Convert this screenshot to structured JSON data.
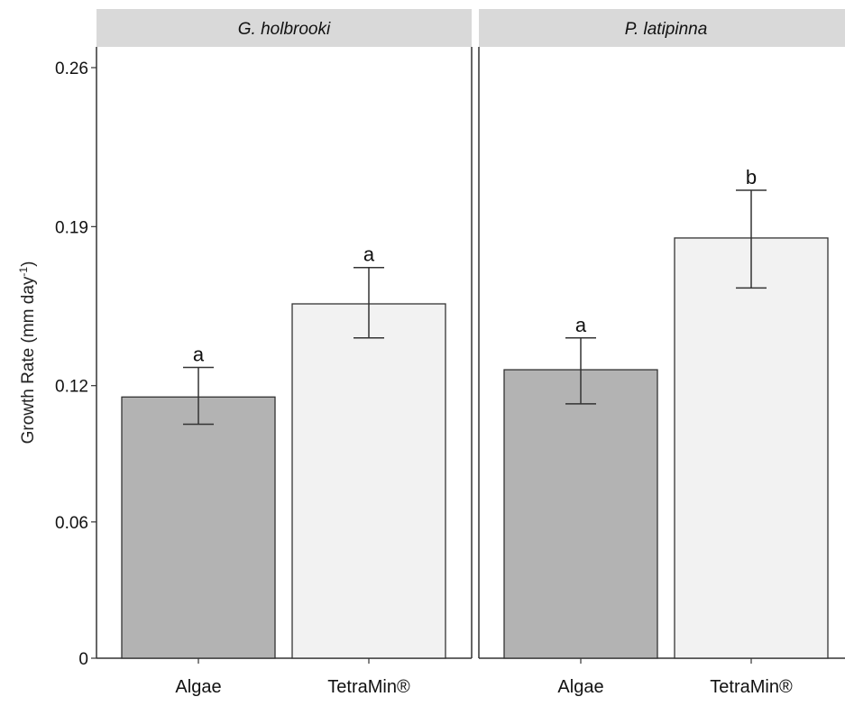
{
  "chart_data": {
    "type": "bar",
    "ylabel": "Growth Rate (mm day",
    "ylabel_superscript": "-1",
    "ylabel_suffix": ")",
    "ylim": [
      0,
      0.26
    ],
    "yticks": [
      0,
      0.06,
      0.12,
      0.19,
      0.26
    ],
    "ytick_labels": [
      "0",
      "0.06",
      "0.12",
      "0.19",
      "0.26"
    ],
    "categories": [
      "Algae",
      "TetraMin®"
    ],
    "grid": false,
    "colors": {
      "Algae": "#b3b3b3",
      "TetraMin®": "#f2f2f2",
      "strip": "#d9d9d9",
      "border": "#333333"
    },
    "panels": [
      {
        "title": "G. holbrooki",
        "bars": [
          {
            "category": "Algae",
            "value": 0.115,
            "err_low": 0.103,
            "err_high": 0.128,
            "label": "a"
          },
          {
            "category": "TetraMin®",
            "value": 0.156,
            "err_low": 0.141,
            "err_high": 0.172,
            "label": "a"
          }
        ]
      },
      {
        "title": "P. latipinna",
        "bars": [
          {
            "category": "Algae",
            "value": 0.127,
            "err_low": 0.112,
            "err_high": 0.141,
            "label": "a"
          },
          {
            "category": "TetraMin®",
            "value": 0.185,
            "err_low": 0.163,
            "err_high": 0.206,
            "label": "b"
          }
        ]
      }
    ]
  }
}
